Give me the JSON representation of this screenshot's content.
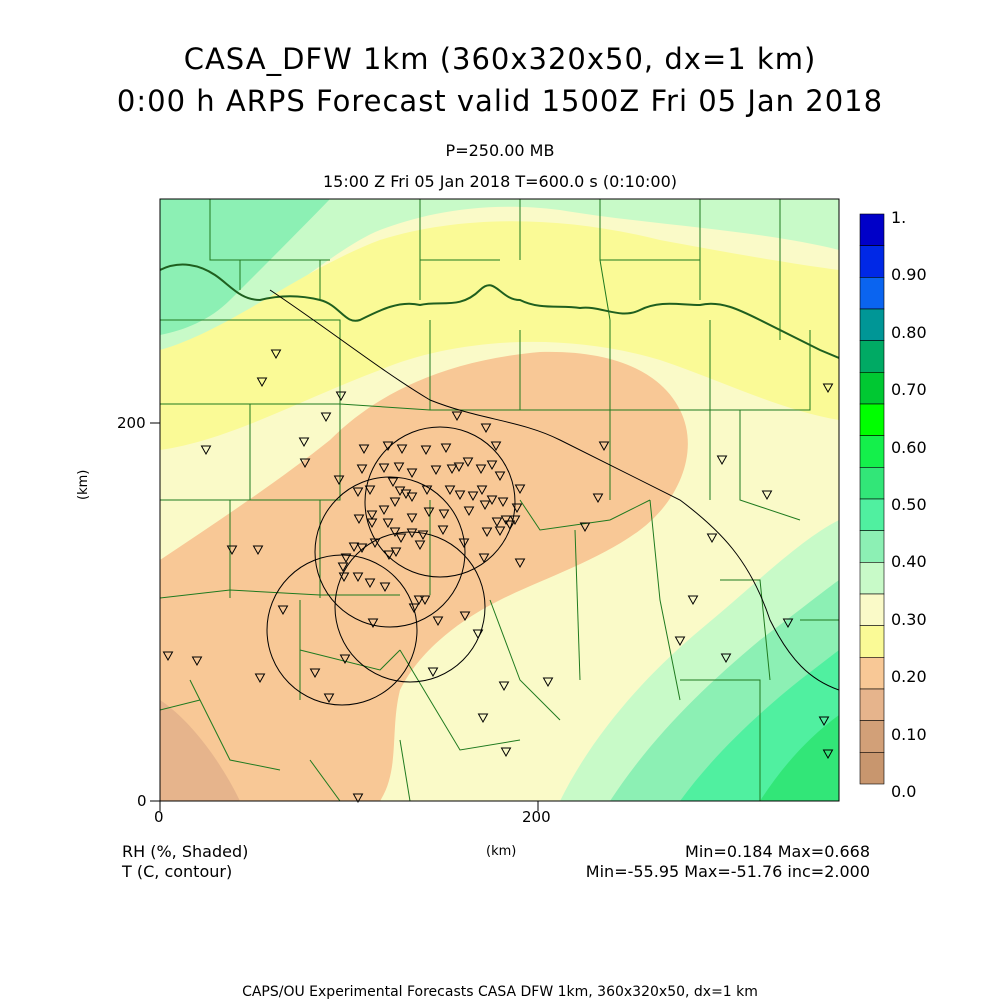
{
  "titles": {
    "line1": "CASA_DFW 1km (360x320x50, dx=1 km)",
    "line2": "0:00 h ARPS Forecast valid 1500Z Fri 05 Jan 2018",
    "level": "P=250.00 MB",
    "time": "15:00 Z Fri 05 Jan 2018    T=600.0 s (0:10:00)"
  },
  "axes": {
    "y_label": "(km)",
    "x_label": "(km)",
    "y_ticks": [
      "0",
      "200"
    ],
    "x_ticks": [
      "0",
      "200"
    ]
  },
  "legend_notes": {
    "field1": "RH (%, Shaded)",
    "field2": "T (C, contour)",
    "stats1": "Min=0.184 Max=0.668",
    "stats2": "Min=-55.95 Max=-51.76 inc=2.000"
  },
  "colorbar": {
    "labels": [
      "1.",
      "0.90",
      "0.80",
      "0.70",
      "0.60",
      "0.50",
      "0.40",
      "0.30",
      "0.20",
      "0.10",
      "0.0"
    ],
    "colors": [
      "#0000c8",
      "#0028e6",
      "#0a64f0",
      "#009696",
      "#00aa64",
      "#00c832",
      "#00ff00",
      "#14f04b",
      "#32e678",
      "#50f0a0",
      "#8cf0b4",
      "#c8fac8",
      "#fafac8",
      "#fafa96",
      "#f8c896",
      "#e6b48c",
      "#d2a078",
      "#c8966e"
    ]
  },
  "footer": "CAPS/OU Experimental Forecasts  CASA DFW 1km, 360x320x50, dx=1 km"
}
